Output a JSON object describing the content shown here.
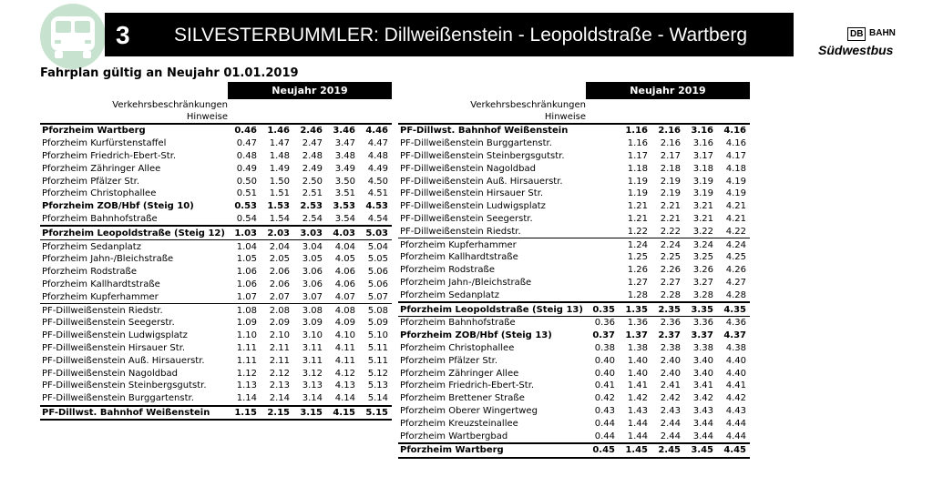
{
  "header": {
    "route_number": "3",
    "title": "SILVESTERBUMMLER: Dillweißenstein - Leopoldstraße - Wartberg",
    "bus_icon": "bus-icon",
    "colors": {
      "bar": "#000000",
      "bus_circle": "#c7e3cf"
    }
  },
  "brand": {
    "db": "DB",
    "bahn": "BAHN",
    "name": "Südwestbus"
  },
  "validity": "Fahrplan gültig an Neujahr 01.01.2019",
  "left_table": {
    "daytype": "Neujahr 2019",
    "restrictions_label": "Verkehrsbeschränkungen",
    "notes_label": "Hinweise",
    "rows": [
      {
        "stop": "Pforzheim Wartberg",
        "times": [
          "0.46",
          "1.46",
          "2.46",
          "3.46",
          "4.46"
        ]
      },
      {
        "stop": "Pforzheim Kurfürstenstaffel",
        "times": [
          "0.47",
          "1.47",
          "2.47",
          "3.47",
          "4.47"
        ]
      },
      {
        "stop": "Pforzheim Friedrich-Ebert-Str.",
        "times": [
          "0.48",
          "1.48",
          "2.48",
          "3.48",
          "4.48"
        ]
      },
      {
        "stop": "Pforzheim Zähringer Allee",
        "times": [
          "0.49",
          "1.49",
          "2.49",
          "3.49",
          "4.49"
        ]
      },
      {
        "stop": "Pforzheim Pfälzer Str.",
        "times": [
          "0.50",
          "1.50",
          "2.50",
          "3.50",
          "4.50"
        ]
      },
      {
        "stop": "Pforzheim Christophallee",
        "times": [
          "0.51",
          "1.51",
          "2.51",
          "3.51",
          "4.51"
        ]
      },
      {
        "stop": "Pforzheim ZOB/Hbf (Steig 10)",
        "times": [
          "0.53",
          "1.53",
          "2.53",
          "3.53",
          "4.53"
        ]
      },
      {
        "stop": "Pforzheim Bahnhofstraße",
        "times": [
          "0.54",
          "1.54",
          "2.54",
          "3.54",
          "4.54"
        ]
      },
      {
        "stop": "Pforzheim Leopoldstraße (Steig 12)",
        "times": [
          "1.03",
          "2.03",
          "3.03",
          "4.03",
          "5.03"
        ]
      },
      {
        "stop": "Pforzheim Sedanplatz",
        "times": [
          "1.04",
          "2.04",
          "3.04",
          "4.04",
          "5.04"
        ]
      },
      {
        "stop": "Pforzheim Jahn-/Bleichstraße",
        "times": [
          "1.05",
          "2.05",
          "3.05",
          "4.05",
          "5.05"
        ]
      },
      {
        "stop": "Pforzheim Rodstraße",
        "times": [
          "1.06",
          "2.06",
          "3.06",
          "4.06",
          "5.06"
        ]
      },
      {
        "stop": "Pforzheim Kallhardtstraße",
        "times": [
          "1.06",
          "2.06",
          "3.06",
          "4.06",
          "5.06"
        ]
      },
      {
        "stop": "Pforzheim Kupferhammer",
        "times": [
          "1.07",
          "2.07",
          "3.07",
          "4.07",
          "5.07"
        ]
      },
      {
        "stop": "PF-Dillweißenstein Riedstr.",
        "times": [
          "1.08",
          "2.08",
          "3.08",
          "4.08",
          "5.08"
        ]
      },
      {
        "stop": "PF-Dillweißenstein Seegerstr.",
        "times": [
          "1.09",
          "2.09",
          "3.09",
          "4.09",
          "5.09"
        ]
      },
      {
        "stop": "PF-Dillweißenstein Ludwigsplatz",
        "times": [
          "1.10",
          "2.10",
          "3.10",
          "4.10",
          "5.10"
        ]
      },
      {
        "stop": "PF-Dillweißenstein Hirsauer Str.",
        "times": [
          "1.11",
          "2.11",
          "3.11",
          "4.11",
          "5.11"
        ]
      },
      {
        "stop": "PF-Dillweißenstein Auß. Hirsauerstr.",
        "times": [
          "1.11",
          "2.11",
          "3.11",
          "4.11",
          "5.11"
        ]
      },
      {
        "stop": "PF-Dillweißenstein Nagoldbad",
        "times": [
          "1.12",
          "2.12",
          "3.12",
          "4.12",
          "5.12"
        ]
      },
      {
        "stop": "PF-Dillweißenstein Steinbergsgutstr.",
        "times": [
          "1.13",
          "2.13",
          "3.13",
          "4.13",
          "5.13"
        ]
      },
      {
        "stop": "PF-Dillweißenstein Burggartenstr.",
        "times": [
          "1.14",
          "2.14",
          "3.14",
          "4.14",
          "5.14"
        ]
      },
      {
        "stop": "PF-Dillwst. Bahnhof Weißenstein",
        "times": [
          "1.15",
          "2.15",
          "3.15",
          "4.15",
          "5.15"
        ]
      }
    ]
  },
  "right_table": {
    "daytype": "Neujahr 2019",
    "restrictions_label": "Verkehrsbeschränkungen",
    "notes_label": "Hinweise",
    "rows": [
      {
        "stop": "PF-Dillwst. Bahnhof Weißenstein",
        "times": [
          "",
          "1.16",
          "2.16",
          "3.16",
          "4.16"
        ]
      },
      {
        "stop": "PF-Dillweißenstein Burggartenstr.",
        "times": [
          "",
          "1.16",
          "2.16",
          "3.16",
          "4.16"
        ]
      },
      {
        "stop": "PF-Dillweißenstein Steinbergsgutstr.",
        "times": [
          "",
          "1.17",
          "2.17",
          "3.17",
          "4.17"
        ]
      },
      {
        "stop": "PF-Dillweißenstein Nagoldbad",
        "times": [
          "",
          "1.18",
          "2.18",
          "3.18",
          "4.18"
        ]
      },
      {
        "stop": "PF-Dillweißenstein Auß. Hirsauerstr.",
        "times": [
          "",
          "1.19",
          "2.19",
          "3.19",
          "4.19"
        ]
      },
      {
        "stop": "PF-Dillweißenstein Hirsauer Str.",
        "times": [
          "",
          "1.19",
          "2.19",
          "3.19",
          "4.19"
        ]
      },
      {
        "stop": "PF-Dillweißenstein Ludwigsplatz",
        "times": [
          "",
          "1.21",
          "2.21",
          "3.21",
          "4.21"
        ]
      },
      {
        "stop": "PF-Dillweißenstein Seegerstr.",
        "times": [
          "",
          "1.21",
          "2.21",
          "3.21",
          "4.21"
        ]
      },
      {
        "stop": "PF-Dillweißenstein Riedstr.",
        "times": [
          "",
          "1.22",
          "2.22",
          "3.22",
          "4.22"
        ]
      },
      {
        "stop": "Pforzheim Kupferhammer",
        "times": [
          "",
          "1.24",
          "2.24",
          "3.24",
          "4.24"
        ]
      },
      {
        "stop": "Pforzheim Kallhardtstraße",
        "times": [
          "",
          "1.25",
          "2.25",
          "3.25",
          "4.25"
        ]
      },
      {
        "stop": "Pforzheim Rodstraße",
        "times": [
          "",
          "1.26",
          "2.26",
          "3.26",
          "4.26"
        ]
      },
      {
        "stop": "Pforzheim Jahn-/Bleichstraße",
        "times": [
          "",
          "1.27",
          "2.27",
          "3.27",
          "4.27"
        ]
      },
      {
        "stop": "Pforzheim Sedanplatz",
        "times": [
          "",
          "1.28",
          "2.28",
          "3.28",
          "4.28"
        ]
      },
      {
        "stop": "Pforzheim Leopoldstraße (Steig 13)",
        "times": [
          "0.35",
          "1.35",
          "2.35",
          "3.35",
          "4.35"
        ]
      },
      {
        "stop": "Pforzheim Bahnhofstraße",
        "times": [
          "0.36",
          "1.36",
          "2.36",
          "3.36",
          "4.36"
        ]
      },
      {
        "stop": "Pforzheim ZOB/Hbf (Steig 13)",
        "times": [
          "0.37",
          "1.37",
          "2.37",
          "3.37",
          "4.37"
        ]
      },
      {
        "stop": "Pforzheim Christophallee",
        "times": [
          "0.38",
          "1.38",
          "2.38",
          "3.38",
          "4.38"
        ]
      },
      {
        "stop": "Pforzheim Pfälzer Str.",
        "times": [
          "0.40",
          "1.40",
          "2.40",
          "3.40",
          "4.40"
        ]
      },
      {
        "stop": "Pforzheim Zähringer Allee",
        "times": [
          "0.40",
          "1.40",
          "2.40",
          "3.40",
          "4.40"
        ]
      },
      {
        "stop": "Pforzheim Friedrich-Ebert-Str.",
        "times": [
          "0.41",
          "1.41",
          "2.41",
          "3.41",
          "4.41"
        ]
      },
      {
        "stop": "Pforzheim Brettener Straße",
        "times": [
          "0.42",
          "1.42",
          "2.42",
          "3.42",
          "4.42"
        ]
      },
      {
        "stop": "Pforzheim Oberer Wingertweg",
        "times": [
          "0.43",
          "1.43",
          "2.43",
          "3.43",
          "4.43"
        ]
      },
      {
        "stop": "Pforzheim Kreuzsteinallee",
        "times": [
          "0.44",
          "1.44",
          "2.44",
          "3.44",
          "4.44"
        ]
      },
      {
        "stop": "Pforzheim Wartbergbad",
        "times": [
          "0.44",
          "1.44",
          "2.44",
          "3.44",
          "4.44"
        ]
      },
      {
        "stop": "Pforzheim Wartberg",
        "times": [
          "0.45",
          "1.45",
          "2.45",
          "3.45",
          "4.45"
        ]
      }
    ]
  }
}
